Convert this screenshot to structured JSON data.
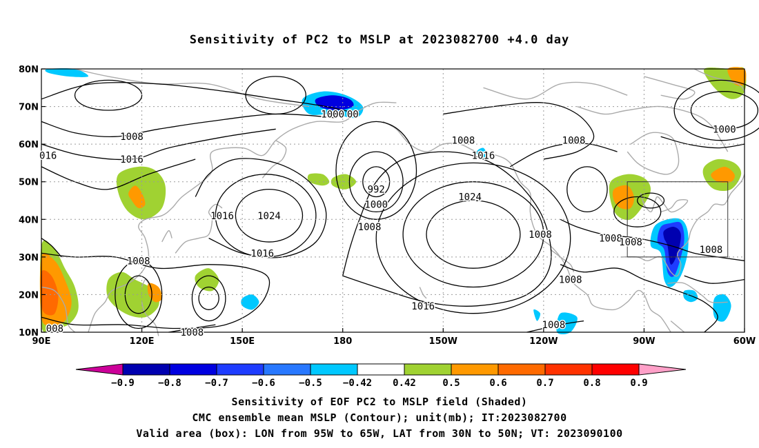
{
  "title": "Sensitivity of PC2 to MSLP at 2023082700 +4.0 day",
  "map": {
    "lon_labels": [
      "90E",
      "120E",
      "150E",
      "180",
      "150W",
      "120W",
      "90W",
      "60W"
    ],
    "lat_labels": [
      "80N",
      "70N",
      "60N",
      "50N",
      "40N",
      "30N",
      "20N",
      "10N"
    ],
    "contour_labels": [
      {
        "text": "016",
        "lon": 92,
        "lat": 57
      },
      {
        "text": "1008",
        "lon": 117,
        "lat": 62
      },
      {
        "text": "1016",
        "lon": 117,
        "lat": 56
      },
      {
        "text": "1000",
        "lon": 177,
        "lat": 68
      },
      {
        "text": "00",
        "lon": 183,
        "lat": 68
      },
      {
        "text": "1016",
        "lon": 144,
        "lat": 41
      },
      {
        "text": "1024",
        "lon": 158,
        "lat": 41
      },
      {
        "text": "992",
        "lon": 190,
        "lat": 48
      },
      {
        "text": "1000",
        "lon": 190,
        "lat": 44
      },
      {
        "text": "1008",
        "lon": 188,
        "lat": 38
      },
      {
        "text": "1024",
        "lon": 218,
        "lat": 46
      },
      {
        "text": "1008",
        "lon": 216,
        "lat": 61
      },
      {
        "text": "1016",
        "lon": 222,
        "lat": 57
      },
      {
        "text": "1008",
        "lon": 249,
        "lat": 61
      },
      {
        "text": "1000",
        "lon": 294,
        "lat": 64
      },
      {
        "text": "1016",
        "lon": 156,
        "lat": 31
      },
      {
        "text": "1008",
        "lon": 119,
        "lat": 29
      },
      {
        "text": "1008",
        "lon": 239,
        "lat": 36
      },
      {
        "text": "1008",
        "lon": 260,
        "lat": 35
      },
      {
        "text": "1008",
        "lon": 266,
        "lat": 34
      },
      {
        "text": "1008",
        "lon": 290,
        "lat": 32
      },
      {
        "text": "1016",
        "lon": 204,
        "lat": 17
      },
      {
        "text": "1008",
        "lon": 248,
        "lat": 24
      },
      {
        "text": "1008",
        "lon": 243,
        "lat": 12
      },
      {
        "text": "1008",
        "lon": 135,
        "lat": 10
      },
      {
        "text": "008",
        "lon": 94,
        "lat": 11
      }
    ],
    "valid_box": {
      "lon": [
        265,
        295
      ],
      "lat": [
        30,
        50
      ]
    }
  },
  "colorbar": {
    "labels": [
      "-0.9",
      "-0.8",
      "-0.7",
      "-0.6",
      "-0.5",
      "-0.42",
      "0.42",
      "0.5",
      "0.6",
      "0.7",
      "0.8",
      "0.9"
    ],
    "colors": [
      "#cc0099",
      "#0000b0",
      "#0000e0",
      "#1e3cff",
      "#2878ff",
      "#00c8ff",
      "#ffffff",
      "#a0d232",
      "#ff9900",
      "#ff6a00",
      "#ff3200",
      "#ff0000",
      "#ffa0c8"
    ]
  },
  "captions": {
    "line1": "Sensitivity of EOF PC2 to MSLP field (Shaded)",
    "line2": "CMC ensemble mean MSLP (Contour); unit(mb); IT:2023082700",
    "line3": "Valid area (box): LON from 95W to 65W, LAT from 30N to 50N; VT: 2023090100"
  }
}
